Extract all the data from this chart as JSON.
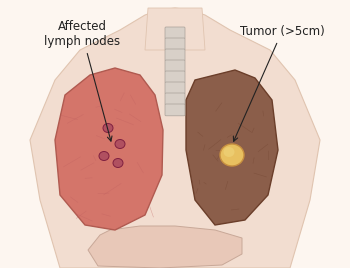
{
  "background_color": "#fdf6f0",
  "body_color": "#f2ddd0",
  "body_outline": "#e0c4b0",
  "left_lung_color": "#d4756a",
  "left_lung_outline": "#b05a50",
  "right_lung_color": "#8b5e4a",
  "right_lung_outline": "#6b3e2a",
  "liver_color": "#e8c8b8",
  "liver_outline": "#c8a898",
  "lymph_node_color": "#b05060",
  "lymph_node_outline": "#802040",
  "tumor_color": "#e8c060",
  "tumor_outline": "#c89040",
  "spine_color": "#d8d0c8",
  "spine_outline": "#a8a098",
  "text_color": "#222222",
  "annotation_line_color": "#222222",
  "label_lymph": "Affected\nlymph nodes",
  "label_tumor": "Tumor (>5cm)",
  "label_fontsize": 8.5,
  "figsize": [
    3.5,
    2.68
  ],
  "dpi": 100
}
